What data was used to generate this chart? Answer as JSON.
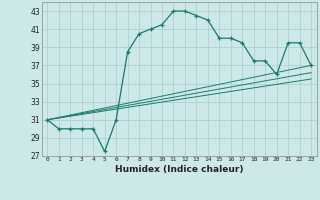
{
  "xlabel": "Humidex (Indice chaleur)",
  "bg_color": "#cde8e8",
  "grid_color": "#b0d0d0",
  "line_color": "#1a7a6e",
  "xlim": [
    -0.5,
    23.5
  ],
  "ylim": [
    27,
    44
  ],
  "yticks": [
    27,
    29,
    31,
    33,
    35,
    37,
    39,
    41,
    43
  ],
  "xtick_labels": [
    "0",
    "1",
    "2",
    "3",
    "4",
    "5",
    "6",
    "7",
    "8",
    "9",
    "10",
    "11",
    "12",
    "13",
    "14",
    "15",
    "16",
    "17",
    "18",
    "19",
    "20",
    "21",
    "22",
    "23"
  ],
  "main_y": [
    31,
    30,
    30,
    30,
    30,
    27.5,
    31,
    38.5,
    40.5,
    41,
    41.5,
    43,
    43,
    42.5,
    42,
    40,
    40,
    39.5,
    37.5,
    37.5,
    36,
    39.5,
    39.5,
    37
  ],
  "trend1_y": [
    31,
    37
  ],
  "trend2_y": [
    31,
    36.2
  ],
  "trend3_y": [
    31,
    35.5
  ]
}
